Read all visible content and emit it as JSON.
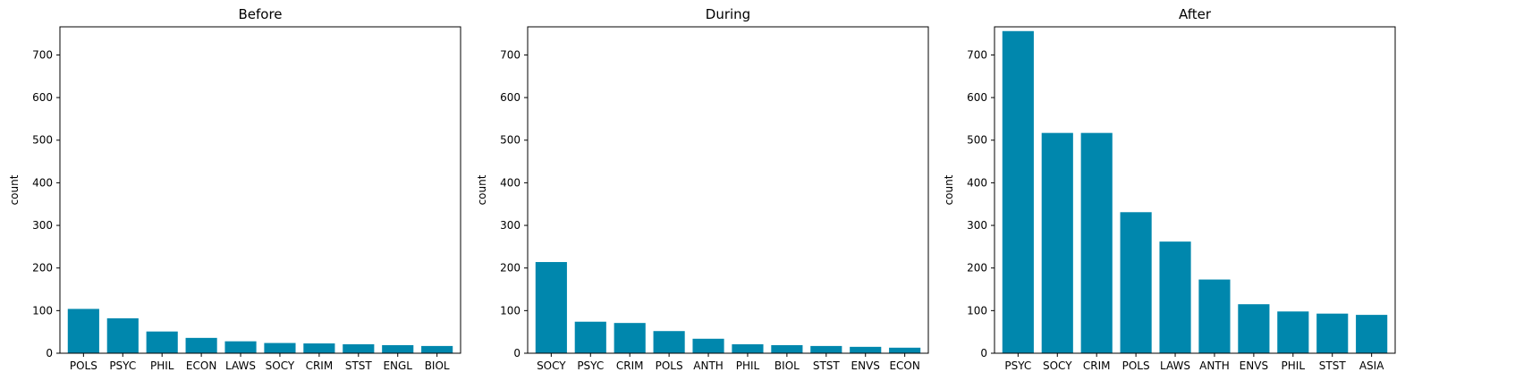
{
  "chart_data": [
    {
      "type": "bar",
      "title": "Before",
      "xlabel": "",
      "ylabel": "count",
      "ylim": [
        0,
        766
      ],
      "yticks": [
        0,
        100,
        200,
        300,
        400,
        500,
        600,
        700
      ],
      "color": "#0087ad",
      "categories": [
        "POLS",
        "PSYC",
        "PHIL",
        "ECON",
        "LAWS",
        "SOCY",
        "CRIM",
        "STST",
        "ENGL",
        "BIOL"
      ],
      "values": [
        104,
        82,
        51,
        36,
        28,
        24,
        23,
        21,
        19,
        17
      ]
    },
    {
      "type": "bar",
      "title": "During",
      "xlabel": "",
      "ylabel": "count",
      "ylim": [
        0,
        766
      ],
      "yticks": [
        0,
        100,
        200,
        300,
        400,
        500,
        600,
        700
      ],
      "color": "#0087ad",
      "categories": [
        "SOCY",
        "PSYC",
        "CRIM",
        "POLS",
        "ANTH",
        "PHIL",
        "BIOL",
        "STST",
        "ENVS",
        "ECON"
      ],
      "values": [
        214,
        74,
        71,
        52,
        34,
        21,
        19,
        17,
        15,
        13
      ]
    },
    {
      "type": "bar",
      "title": "After",
      "xlabel": "",
      "ylabel": "count",
      "ylim": [
        0,
        766
      ],
      "yticks": [
        0,
        100,
        200,
        300,
        400,
        500,
        600,
        700
      ],
      "color": "#0087ad",
      "categories": [
        "PSYC",
        "SOCY",
        "CRIM",
        "POLS",
        "LAWS",
        "ANTH",
        "ENVS",
        "PHIL",
        "STST",
        "ASIA"
      ],
      "values": [
        756,
        517,
        517,
        331,
        262,
        173,
        115,
        98,
        93,
        90
      ]
    }
  ]
}
